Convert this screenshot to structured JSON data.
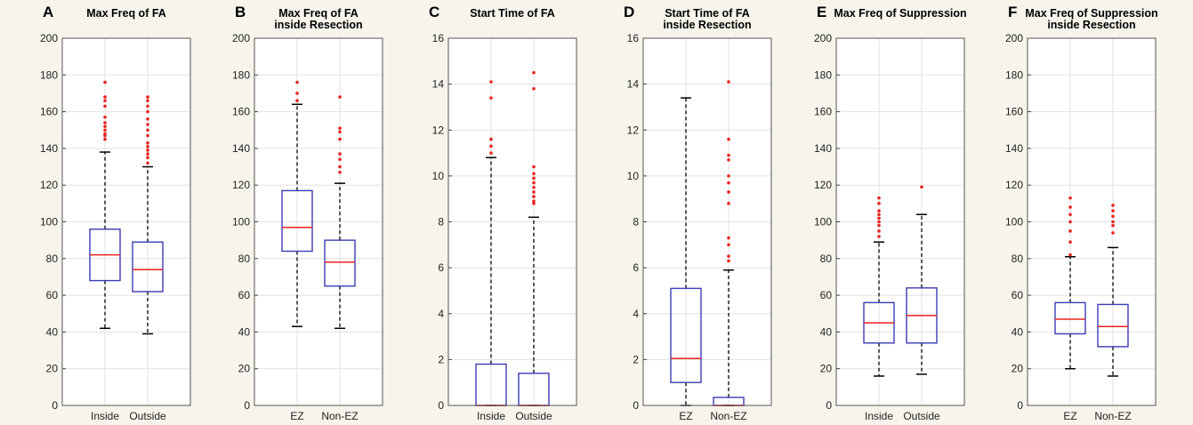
{
  "background": "#f7f4ec",
  "colors": {
    "box": "#3c3cb4",
    "median": "#e8231e",
    "outlier": "#e8231e",
    "whisker": "#000000",
    "grid": "#e2e2e2"
  },
  "chart_data": [
    {
      "type": "box",
      "panel": "A",
      "title": [
        "Max Freq of FA"
      ],
      "ylim": [
        0,
        200
      ],
      "yticks": [
        0,
        20,
        40,
        60,
        80,
        100,
        120,
        140,
        160,
        180,
        200
      ],
      "grid": true,
      "categories": [
        "Inside",
        "Outside"
      ],
      "boxes": [
        {
          "whisker_low": 42,
          "q1": 68,
          "median": 82,
          "q3": 96,
          "whisker_high": 138,
          "outliers": [
            145,
            147,
            148,
            150,
            152,
            154,
            157,
            163,
            166,
            168,
            176
          ]
        },
        {
          "whisker_low": 39,
          "q1": 62,
          "median": 74,
          "q3": 89,
          "whisker_high": 130,
          "outliers": [
            132,
            135,
            137,
            139,
            141,
            143,
            147,
            150,
            153,
            156,
            160,
            163,
            166,
            168
          ]
        }
      ]
    },
    {
      "type": "box",
      "panel": "B",
      "title": [
        "Max Freq of FA",
        "inside Resection"
      ],
      "ylim": [
        0,
        200
      ],
      "yticks": [
        0,
        20,
        40,
        60,
        80,
        100,
        120,
        140,
        160,
        180,
        200
      ],
      "grid": true,
      "categories": [
        "EZ",
        "Non-EZ"
      ],
      "boxes": [
        {
          "whisker_low": 43,
          "q1": 84,
          "median": 97,
          "q3": 117,
          "whisker_high": 164,
          "outliers": [
            166,
            170,
            176
          ]
        },
        {
          "whisker_low": 42,
          "q1": 65,
          "median": 78,
          "q3": 90,
          "whisker_high": 121,
          "outliers": [
            127,
            130,
            134,
            137,
            145,
            149,
            151,
            168
          ]
        }
      ]
    },
    {
      "type": "box",
      "panel": "C",
      "title": [
        "Start Time of FA"
      ],
      "ylim": [
        0,
        16
      ],
      "yticks": [
        0,
        2,
        4,
        6,
        8,
        10,
        12,
        14,
        16
      ],
      "grid": true,
      "categories": [
        "Inside",
        "Outside"
      ],
      "boxes": [
        {
          "whisker_low": 0,
          "q1": 0,
          "median": 0,
          "q3": 1.8,
          "whisker_high": 10.8,
          "outliers": [
            11.0,
            11.3,
            11.6,
            13.4,
            14.1
          ]
        },
        {
          "whisker_low": 0,
          "q1": 0,
          "median": 0,
          "q3": 1.4,
          "whisker_high": 8.2,
          "outliers": [
            8.8,
            8.9,
            9.1,
            9.3,
            9.5,
            9.7,
            9.9,
            10.1,
            10.4,
            13.8,
            14.5
          ]
        }
      ]
    },
    {
      "type": "box",
      "panel": "D",
      "title": [
        "Start Time of FA",
        "inside Resection"
      ],
      "ylim": [
        0,
        16
      ],
      "yticks": [
        0,
        2,
        4,
        6,
        8,
        10,
        12,
        14,
        16
      ],
      "grid": true,
      "categories": [
        "EZ",
        "Non-EZ"
      ],
      "boxes": [
        {
          "whisker_low": 0,
          "q1": 1.0,
          "median": 2.05,
          "q3": 5.1,
          "whisker_high": 13.4,
          "outliers": []
        },
        {
          "whisker_low": 0,
          "q1": 0,
          "median": 0,
          "q3": 0.35,
          "whisker_high": 5.9,
          "outliers": [
            6.3,
            6.5,
            7.0,
            7.3,
            8.8,
            9.3,
            9.7,
            10.0,
            10.7,
            10.9,
            11.6,
            14.1
          ]
        }
      ]
    },
    {
      "type": "box",
      "panel": "E",
      "title": [
        "Max Freq of Suppression"
      ],
      "ylim": [
        0,
        200
      ],
      "yticks": [
        0,
        20,
        40,
        60,
        80,
        100,
        120,
        140,
        160,
        180,
        200
      ],
      "grid": true,
      "categories": [
        "Inside",
        "Outside"
      ],
      "boxes": [
        {
          "whisker_low": 16,
          "q1": 34,
          "median": 45,
          "q3": 56,
          "whisker_high": 89,
          "outliers": [
            92,
            95,
            98,
            100,
            102,
            104,
            106,
            110,
            113
          ]
        },
        {
          "whisker_low": 17,
          "q1": 34,
          "median": 49,
          "q3": 64,
          "whisker_high": 104,
          "outliers": [
            119
          ]
        }
      ]
    },
    {
      "type": "box",
      "panel": "F",
      "title": [
        "Max Freq of Suppression",
        "inside Resection"
      ],
      "ylim": [
        0,
        200
      ],
      "yticks": [
        0,
        20,
        40,
        60,
        80,
        100,
        120,
        140,
        160,
        180,
        200
      ],
      "grid": true,
      "categories": [
        "EZ",
        "Non-EZ"
      ],
      "boxes": [
        {
          "whisker_low": 20,
          "q1": 39,
          "median": 47,
          "q3": 56,
          "whisker_high": 81,
          "outliers": [
            82,
            89,
            95,
            100,
            104,
            108,
            113
          ]
        },
        {
          "whisker_low": 16,
          "q1": 32,
          "median": 43,
          "q3": 55,
          "whisker_high": 86,
          "outliers": [
            94,
            98,
            100,
            103,
            106,
            109
          ]
        }
      ]
    }
  ]
}
